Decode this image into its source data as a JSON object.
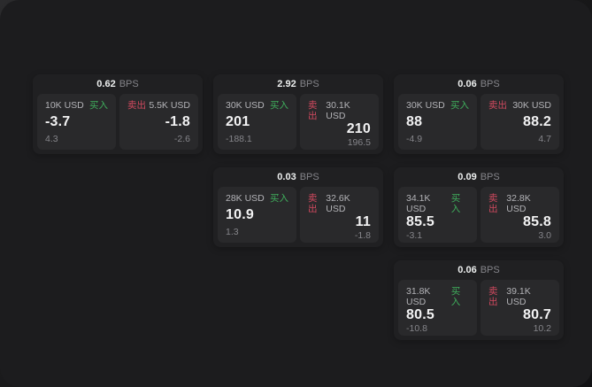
{
  "labels": {
    "bps_unit": "BPS",
    "buy": "买入",
    "sell": "卖出"
  },
  "colors": {
    "window_bg": "#1c1c1e",
    "card_bg": "#202022",
    "panel_bg": "#29292b",
    "value_white": "#f2f2f3",
    "label_gray": "#b3b3b7",
    "muted_gray": "#85858a",
    "buy_green": "#3fae5c",
    "sell_red": "#d1495f"
  },
  "cards": [
    {
      "bps": "0.62",
      "buy": {
        "amount": "10K USD",
        "value": "-3.7",
        "delta": "4.3"
      },
      "sell": {
        "amount": "5.5K USD",
        "value": "-1.8",
        "delta": "-2.6"
      }
    },
    {
      "bps": "2.92",
      "buy": {
        "amount": "30K USD",
        "value": "201",
        "delta": "-188.1"
      },
      "sell": {
        "amount": "30.1K USD",
        "value": "210",
        "delta": "196.5"
      }
    },
    {
      "bps": "0.03",
      "buy": {
        "amount": "28K USD",
        "value": "10.9",
        "delta": "1.3"
      },
      "sell": {
        "amount": "32.6K USD",
        "value": "11",
        "delta": "-1.8"
      }
    },
    {
      "bps": "0.06",
      "buy": {
        "amount": "30K USD",
        "value": "88",
        "delta": "-4.9"
      },
      "sell": {
        "amount": "30K USD",
        "value": "88.2",
        "delta": "4.7"
      }
    },
    {
      "bps": "0.09",
      "buy": {
        "amount": "34.1K USD",
        "value": "85.5",
        "delta": "-3.1"
      },
      "sell": {
        "amount": "32.8K USD",
        "value": "85.8",
        "delta": "3.0"
      }
    },
    {
      "bps": "0.06",
      "buy": {
        "amount": "31.8K USD",
        "value": "80.5",
        "delta": "-10.8"
      },
      "sell": {
        "amount": "39.1K USD",
        "value": "80.7",
        "delta": "10.2"
      }
    }
  ]
}
